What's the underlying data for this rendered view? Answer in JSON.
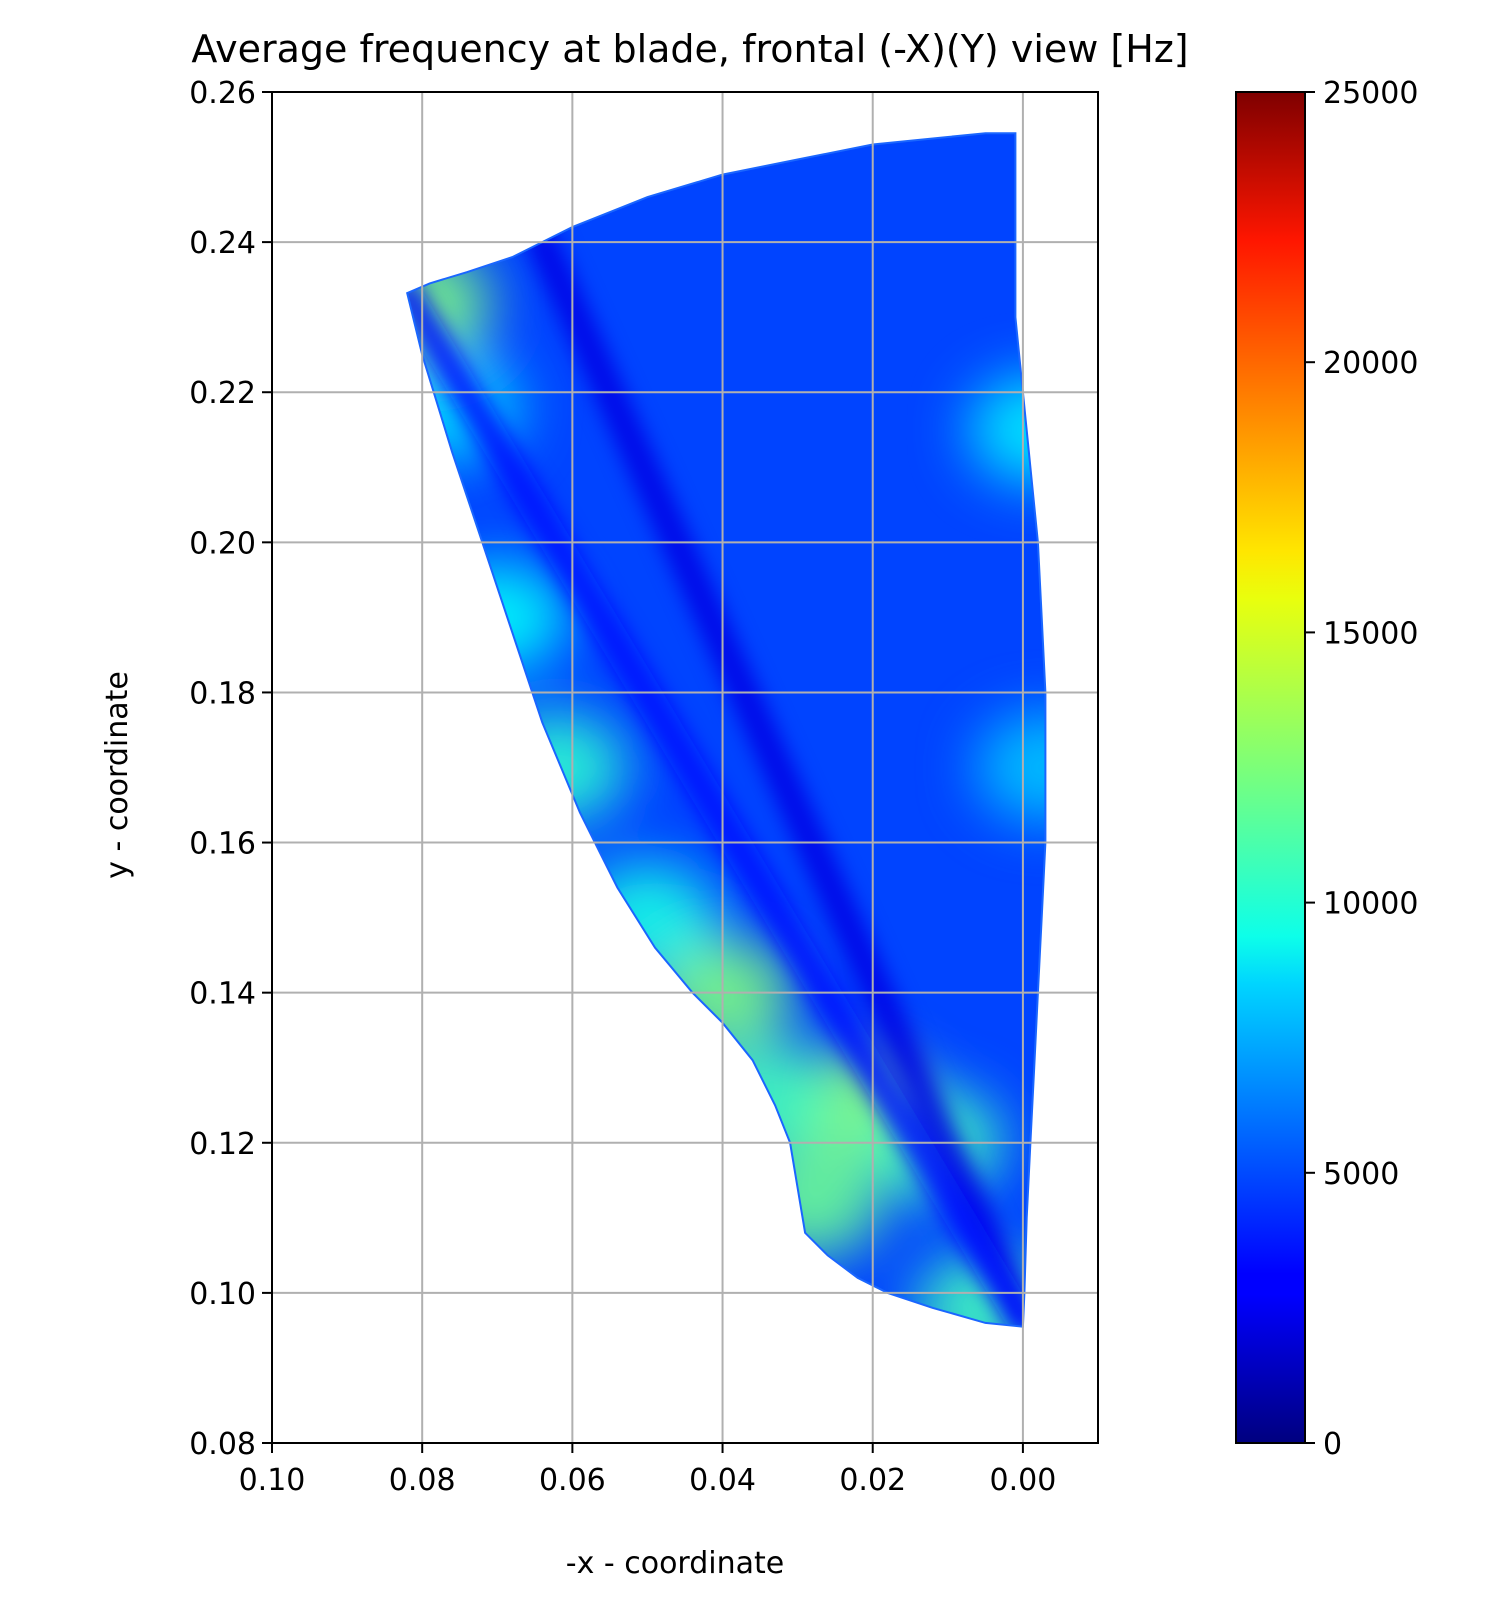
{
  "chart_data": {
    "type": "scatter",
    "title": "Average frequency at blade, frontal (-X)(Y) view [Hz]",
    "xlabel": "-x - coordinate",
    "ylabel": "y - coordinate",
    "x_axis_inverted": true,
    "xlim": [
      0.1,
      -0.01
    ],
    "ylim": [
      0.08,
      0.26
    ],
    "xticks": [
      "0.10",
      "0.08",
      "0.06",
      "0.04",
      "0.02",
      "0.00"
    ],
    "xtick_values": [
      0.1,
      0.08,
      0.06,
      0.04,
      0.02,
      0.0
    ],
    "yticks": [
      "0.08",
      "0.10",
      "0.12",
      "0.14",
      "0.16",
      "0.18",
      "0.20",
      "0.22",
      "0.24",
      "0.26"
    ],
    "ytick_values": [
      0.08,
      0.1,
      0.12,
      0.14,
      0.16,
      0.18,
      0.2,
      0.22,
      0.24,
      0.26
    ],
    "grid": true,
    "colormap": "jet",
    "colorbar": {
      "min": 0,
      "max": 25000,
      "ticks": [
        "0",
        "5000",
        "10000",
        "15000",
        "20000",
        "25000"
      ],
      "tick_values": [
        0,
        5000,
        10000,
        15000,
        20000,
        25000
      ]
    },
    "blade_outline": {
      "x": [
        0.082,
        0.08,
        0.076,
        0.072,
        0.068,
        0.064,
        0.059,
        0.054,
        0.049,
        0.044,
        0.04,
        0.036,
        0.033,
        0.031,
        0.03,
        0.029,
        0.026,
        0.022,
        0.018,
        0.012,
        0.005,
        0.0,
        -0.0002,
        -0.0005,
        -0.001,
        -0.0015,
        -0.002,
        -0.0025,
        -0.003,
        -0.003,
        -0.003,
        -0.0025,
        -0.002,
        -0.001,
        0.0,
        0.001,
        0.001,
        0.005,
        0.01,
        0.02,
        0.03,
        0.04,
        0.05,
        0.06,
        0.068,
        0.074,
        0.079,
        0.082
      ],
      "y": [
        0.2332,
        0.225,
        0.212,
        0.2,
        0.188,
        0.176,
        0.164,
        0.154,
        0.146,
        0.14,
        0.136,
        0.131,
        0.125,
        0.12,
        0.114,
        0.108,
        0.105,
        0.102,
        0.1,
        0.098,
        0.096,
        0.0955,
        0.1,
        0.11,
        0.12,
        0.13,
        0.14,
        0.15,
        0.16,
        0.17,
        0.18,
        0.19,
        0.2,
        0.21,
        0.22,
        0.23,
        0.2545,
        0.2545,
        0.254,
        0.253,
        0.251,
        0.249,
        0.246,
        0.242,
        0.238,
        0.236,
        0.2345,
        0.2332
      ]
    },
    "value_field": {
      "background": 4800,
      "features": [
        {
          "shape": "band",
          "x": [
            0.064,
            0.0
          ],
          "y": [
            0.24,
            0.097
          ],
          "value": 2500
        },
        {
          "shape": "band",
          "x": [
            0.082,
            0.0
          ],
          "y": [
            0.233,
            0.096
          ],
          "value": 3500
        },
        {
          "shape": "blob",
          "x": 0.07,
          "y": 0.19,
          "value": 9500
        },
        {
          "shape": "blob",
          "x": 0.062,
          "y": 0.17,
          "value": 10500
        },
        {
          "shape": "blob",
          "x": 0.076,
          "y": 0.218,
          "value": 8500
        },
        {
          "shape": "blob",
          "x": 0.08,
          "y": 0.232,
          "value": 12500
        },
        {
          "shape": "blob",
          "x": 0.04,
          "y": 0.14,
          "value": 12500
        },
        {
          "shape": "blob",
          "x": 0.022,
          "y": 0.125,
          "value": 13000
        },
        {
          "shape": "blob",
          "x": 0.028,
          "y": 0.112,
          "value": 12000
        },
        {
          "shape": "blob",
          "x": 0.012,
          "y": 0.12,
          "value": 11000
        },
        {
          "shape": "blob",
          "x": 0.005,
          "y": 0.098,
          "value": 11000
        },
        {
          "shape": "blob",
          "x": 0.05,
          "y": 0.15,
          "value": 10000
        },
        {
          "shape": "blob",
          "x": 0.034,
          "y": 0.126,
          "value": 11000
        },
        {
          "shape": "blob",
          "x": -0.002,
          "y": 0.215,
          "value": 9000
        },
        {
          "shape": "blob",
          "x": -0.003,
          "y": 0.17,
          "value": 8000
        }
      ]
    }
  }
}
